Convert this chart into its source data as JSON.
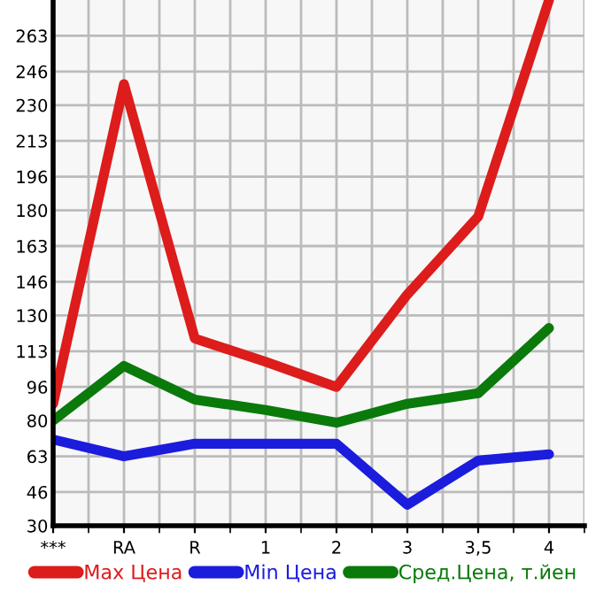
{
  "chart_data": {
    "type": "line",
    "categories": [
      "***",
      "RA",
      "R",
      "1",
      "2",
      "3",
      "3,5",
      "4"
    ],
    "series": [
      {
        "name": "Max Цена",
        "color": "#dd1c1c",
        "values": [
          88,
          240,
          119,
          108,
          96,
          140,
          177,
          280
        ]
      },
      {
        "name": "Min Цена",
        "color": "#1c1cdd",
        "values": [
          71,
          63,
          69,
          69,
          69,
          40,
          61,
          64
        ]
      },
      {
        "name": "Сред.Цена, т.йен",
        "color": "#0a7a0a",
        "values": [
          80,
          106,
          90,
          85,
          79,
          88,
          93,
          124
        ]
      }
    ],
    "ylim": [
      30,
      280
    ],
    "yticks": [
      30,
      46,
      63,
      80,
      96,
      113,
      130,
      146,
      163,
      180,
      196,
      213,
      230,
      246,
      263
    ],
    "grid": true,
    "legend": "bottom",
    "marker": "none",
    "line_style": "solid"
  }
}
